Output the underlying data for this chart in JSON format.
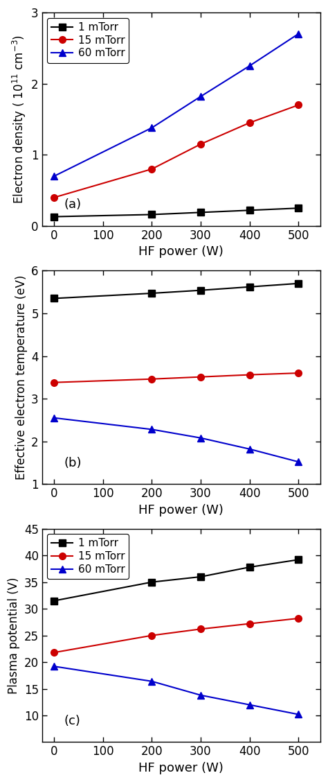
{
  "x": [
    0,
    200,
    300,
    400,
    500
  ],
  "panel_a": {
    "title": "(a)",
    "ylabel": "Electron density ( 10$^{11}$ cm$^{-3}$)",
    "xlabel": "HF power (W)",
    "ylim": [
      0,
      3.0
    ],
    "yticks": [
      0,
      1,
      2,
      3
    ],
    "series": {
      "1 mTorr": {
        "color": "#000000",
        "marker": "s",
        "y": [
          0.13,
          0.16,
          0.19,
          0.22,
          0.25
        ]
      },
      "15 mTorr": {
        "color": "#cc0000",
        "marker": "o",
        "y": [
          0.4,
          0.8,
          1.15,
          1.45,
          1.7
        ]
      },
      "60 mTorr": {
        "color": "#0000cc",
        "marker": "^",
        "y": [
          0.7,
          1.38,
          1.82,
          2.25,
          2.7
        ]
      }
    },
    "legend": true
  },
  "panel_b": {
    "title": "(b)",
    "ylabel": "Effective electron temperature (eV)",
    "xlabel": "HF power (W)",
    "ylim": [
      1.0,
      6.0
    ],
    "yticks": [
      1,
      2,
      3,
      4,
      5,
      6
    ],
    "series": {
      "1 mTorr": {
        "color": "#000000",
        "marker": "s",
        "y": [
          5.35,
          5.47,
          5.54,
          5.62,
          5.7
        ]
      },
      "15 mTorr": {
        "color": "#cc0000",
        "marker": "o",
        "y": [
          3.38,
          3.46,
          3.51,
          3.56,
          3.6
        ]
      },
      "60 mTorr": {
        "color": "#0000cc",
        "marker": "^",
        "y": [
          2.55,
          2.28,
          2.08,
          1.82,
          1.52
        ]
      }
    },
    "legend": false
  },
  "panel_c": {
    "title": "(c)",
    "ylabel": "Plasma potential (V)",
    "xlabel": "HF power (W)",
    "ylim": [
      5,
      45
    ],
    "yticks": [
      10,
      15,
      20,
      25,
      30,
      35,
      40,
      45
    ],
    "series": {
      "1 mTorr": {
        "color": "#000000",
        "marker": "s",
        "y": [
          31.5,
          35.0,
          36.0,
          37.8,
          39.2
        ]
      },
      "15 mTorr": {
        "color": "#cc0000",
        "marker": "o",
        "y": [
          21.8,
          25.0,
          26.2,
          27.2,
          28.2
        ]
      },
      "60 mTorr": {
        "color": "#0000cc",
        "marker": "^",
        "y": [
          19.2,
          16.4,
          13.8,
          12.0,
          10.2
        ]
      }
    },
    "legend": true
  },
  "legend_labels": [
    "1 mTorr",
    "15 mTorr",
    "60 mTorr"
  ],
  "xlim": [
    -25,
    545
  ],
  "xticks": [
    0,
    100,
    200,
    300,
    400,
    500
  ],
  "figsize": [
    4.74,
    11.28
  ],
  "dpi": 100,
  "marker_size": 7,
  "linewidth": 1.5,
  "tick_labelsize": 12,
  "label_fontsize": 13,
  "ylabel_fontsize": 12,
  "legend_fontsize": 11,
  "panel_label_fontsize": 13
}
